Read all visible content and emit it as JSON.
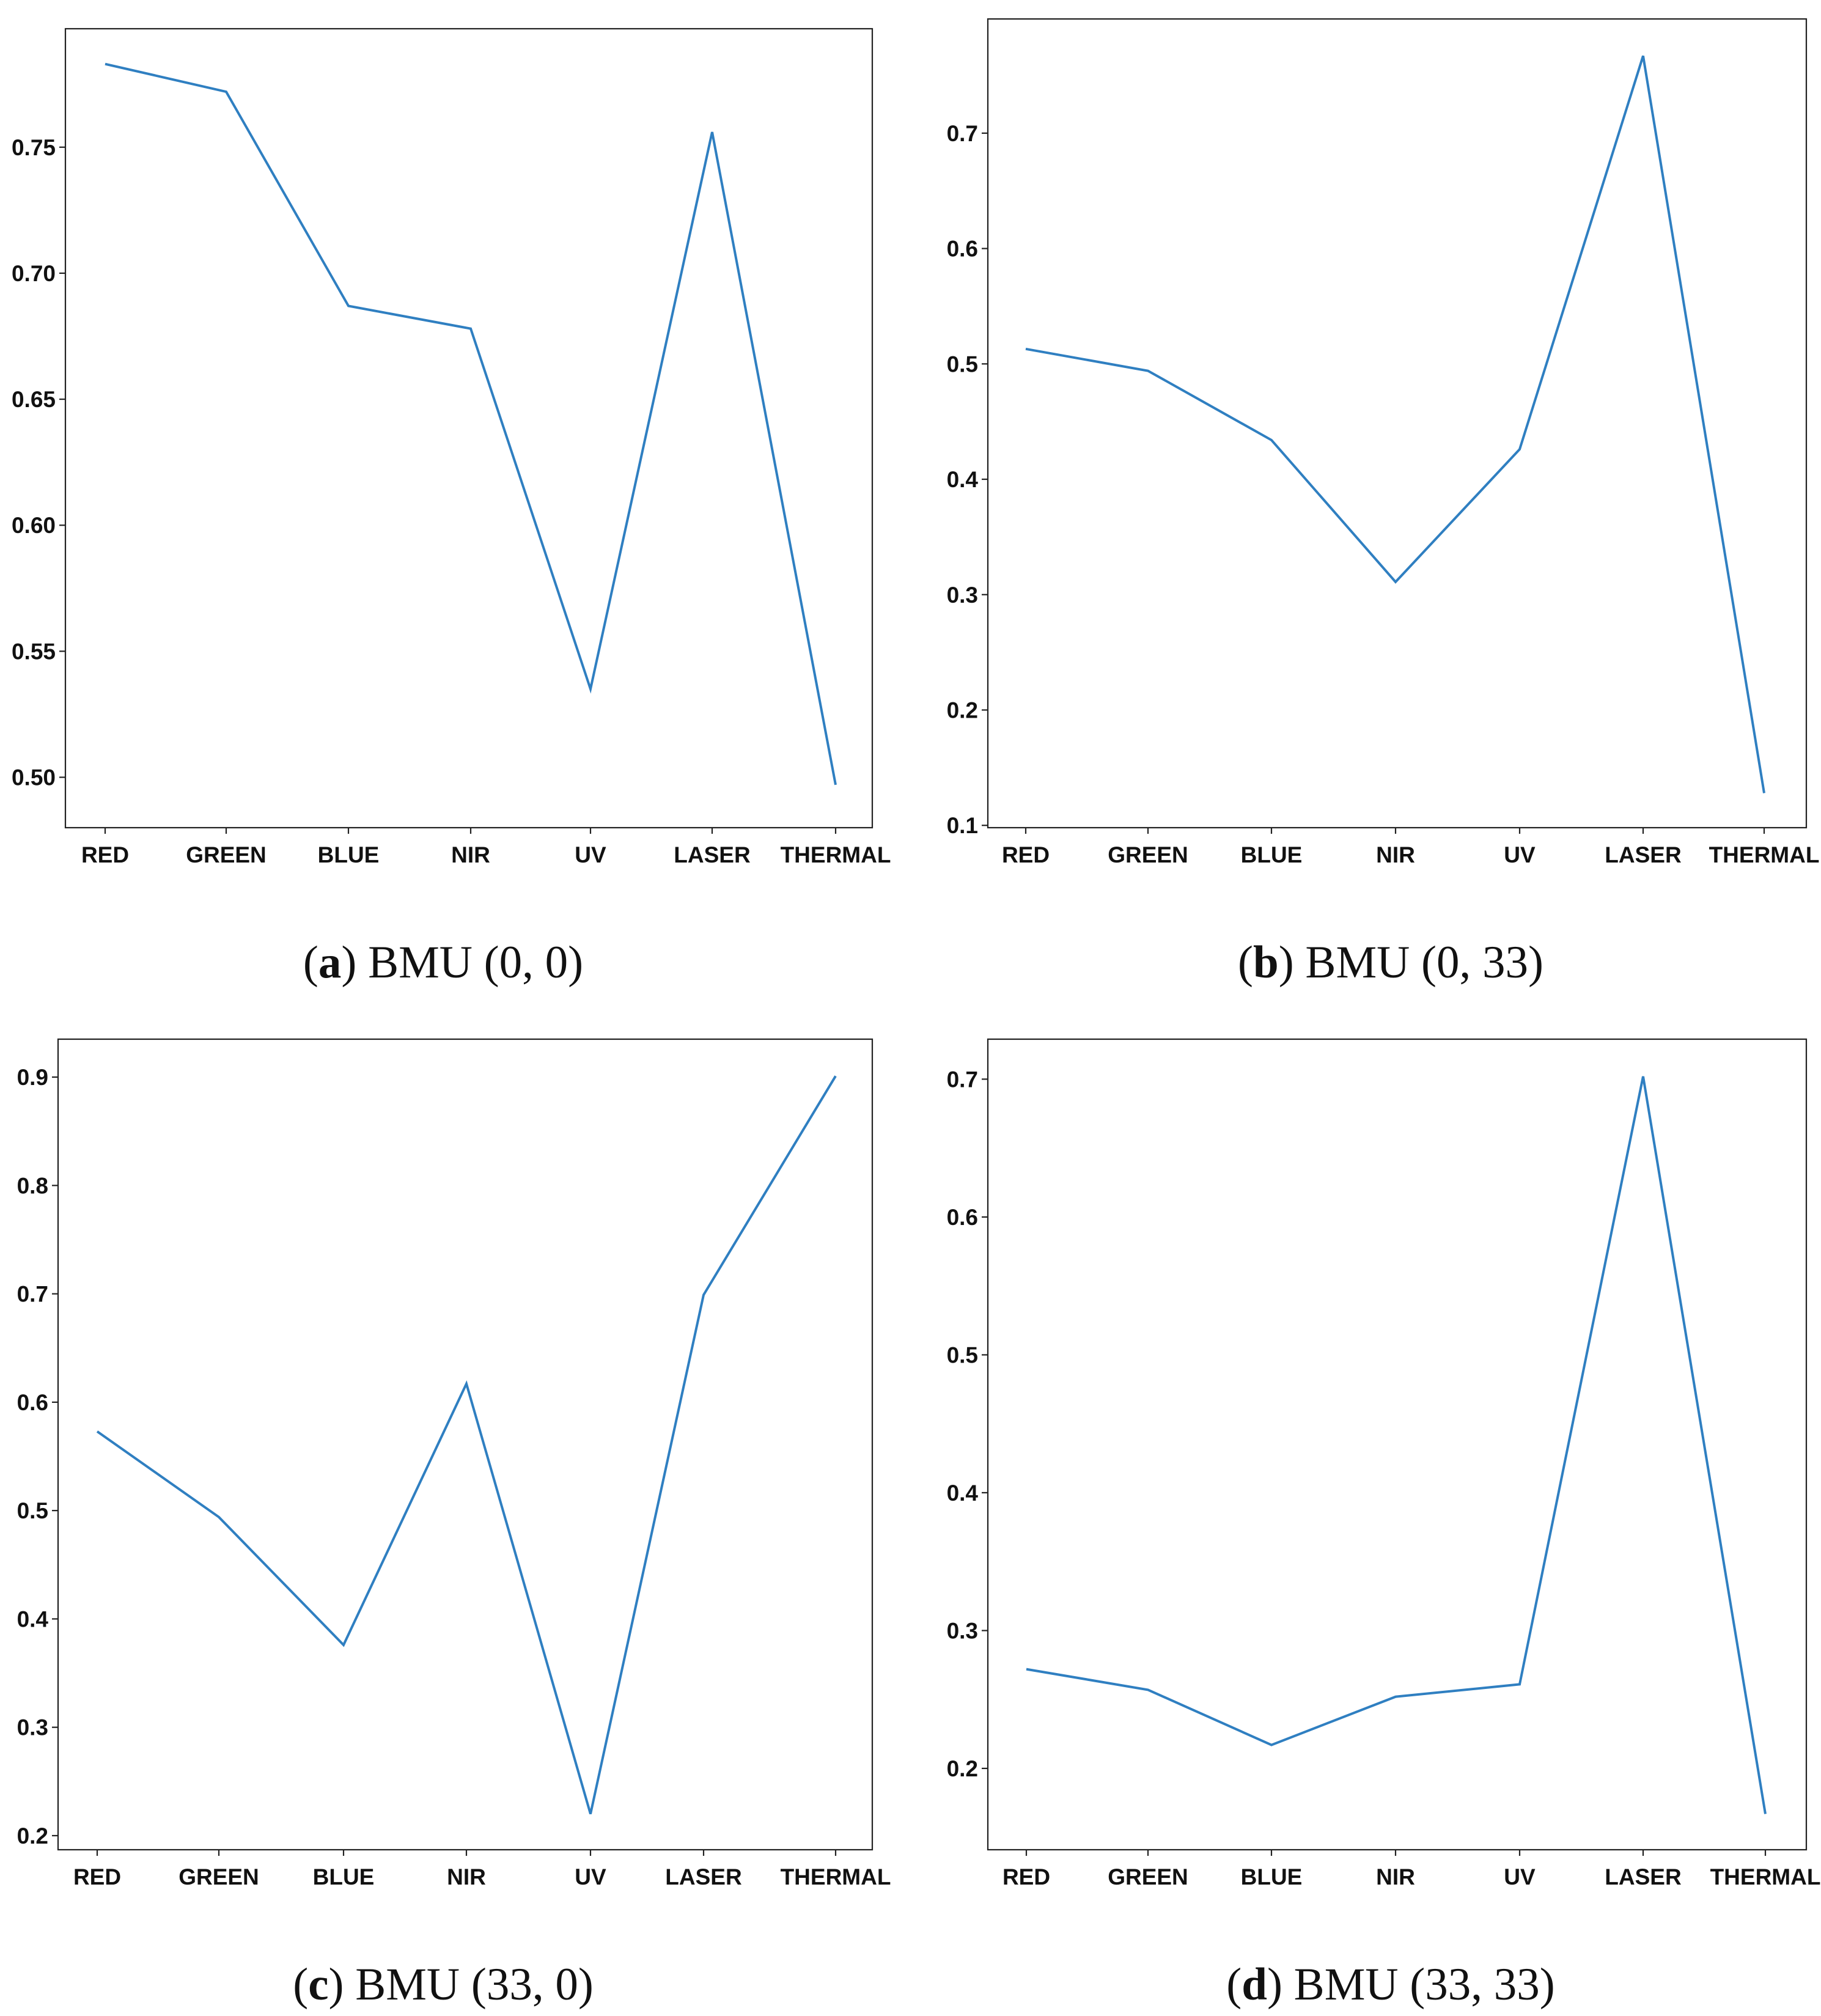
{
  "colors": {
    "series": "#2f7fc1",
    "axes": "#222222",
    "background": "#ffffff"
  },
  "chart_data": [
    {
      "type": "line",
      "caption_letter": "a",
      "caption_text": "BMU (0, 0)",
      "categories": [
        "RED",
        "GREEN",
        "BLUE",
        "NIR",
        "UV",
        "LASER",
        "THERMAL"
      ],
      "series": [
        {
          "values": [
            0.783,
            0.772,
            0.687,
            0.678,
            0.535,
            0.756,
            0.497
          ]
        }
      ],
      "yticks": [
        0.5,
        0.55,
        0.6,
        0.65,
        0.7,
        0.75
      ],
      "ytick_labels": [
        "0.50",
        "0.55",
        "0.60",
        "0.65",
        "0.70",
        "0.75"
      ],
      "ylim": [
        0.48,
        0.797
      ],
      "grid": false,
      "xlabel": "",
      "ylabel": "",
      "title": ""
    },
    {
      "type": "line",
      "caption_letter": "b",
      "caption_text": "BMU (0, 33)",
      "categories": [
        "RED",
        "GREEN",
        "BLUE",
        "NIR",
        "UV",
        "LASER",
        "THERMAL"
      ],
      "series": [
        {
          "values": [
            0.513,
            0.494,
            0.434,
            0.311,
            0.426,
            0.767,
            0.128
          ]
        }
      ],
      "yticks": [
        0.1,
        0.2,
        0.3,
        0.4,
        0.5,
        0.6,
        0.7
      ],
      "ytick_labels": [
        "0.1",
        "0.2",
        "0.3",
        "0.4",
        "0.5",
        "0.6",
        "0.7"
      ],
      "ylim": [
        0.098,
        0.799
      ],
      "grid": false,
      "xlabel": "",
      "ylabel": "",
      "title": ""
    },
    {
      "type": "line",
      "caption_letter": "c",
      "caption_text": "BMU (33, 0)",
      "categories": [
        "RED",
        "GREEN",
        "BLUE",
        "NIR",
        "UV",
        "LASER",
        "THERMAL"
      ],
      "series": [
        {
          "values": [
            0.573,
            0.494,
            0.376,
            0.617,
            0.22,
            0.699,
            0.901
          ]
        }
      ],
      "yticks": [
        0.2,
        0.3,
        0.4,
        0.5,
        0.6,
        0.7,
        0.8,
        0.9
      ],
      "ytick_labels": [
        "0.2",
        "0.3",
        "0.4",
        "0.5",
        "0.6",
        "0.7",
        "0.8",
        "0.9"
      ],
      "ylim": [
        0.187,
        0.935
      ],
      "grid": false,
      "xlabel": "",
      "ylabel": "",
      "title": ""
    },
    {
      "type": "line",
      "caption_letter": "d",
      "caption_text": "BMU (33, 33)",
      "categories": [
        "RED",
        "GREEN",
        "BLUE",
        "NIR",
        "UV",
        "LASER",
        "THERMAL"
      ],
      "series": [
        {
          "values": [
            0.272,
            0.257,
            0.217,
            0.252,
            0.261,
            0.702,
            0.167
          ]
        }
      ],
      "yticks": [
        0.2,
        0.3,
        0.4,
        0.5,
        0.6,
        0.7
      ],
      "ytick_labels": [
        "0.2",
        "0.3",
        "0.4",
        "0.5",
        "0.6",
        "0.7"
      ],
      "ylim": [
        0.141,
        0.729
      ],
      "grid": false,
      "xlabel": "",
      "ylabel": "",
      "title": ""
    }
  ]
}
